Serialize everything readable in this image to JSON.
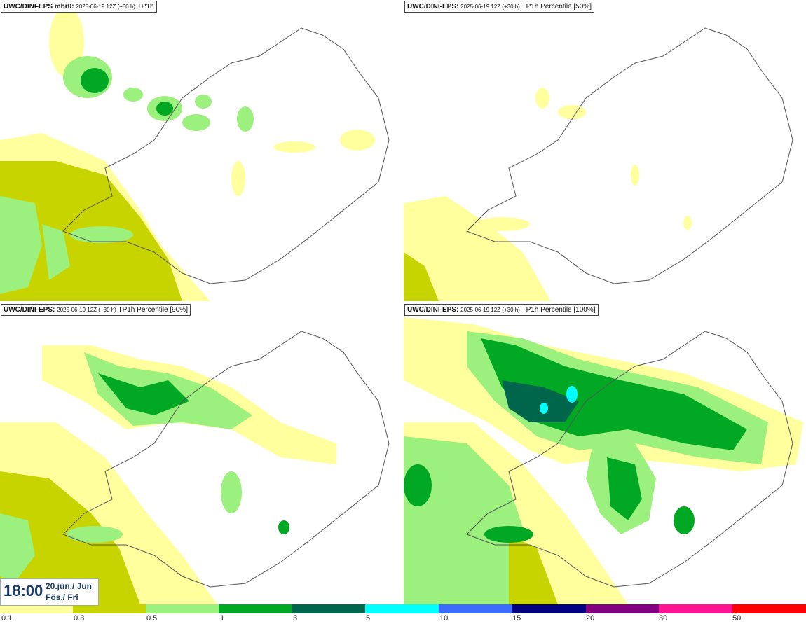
{
  "panels": [
    {
      "source": "UWC/DINI-EPS mbr0:",
      "run": "2025-06-19 12Z (+30 h)",
      "param": "TP1h"
    },
    {
      "source": "UWC/DINI-EPS:",
      "run": "2025-06-19 12Z (+30 h)",
      "param": "TP1h Percentile [50%]"
    },
    {
      "source": "UWC/DINI-EPS:",
      "run": "2025-06-19 12Z (+30 h)",
      "param": "TP1h Percentile [90%]"
    },
    {
      "source": "UWC/DINI-EPS:",
      "run": "2025-06-19 12Z (+30 h)",
      "param": "TP1h Percentile [100%]"
    }
  ],
  "valid_time": {
    "time": "18:00",
    "date": "20.jún./ Jun",
    "day": "Fös./ Fri"
  },
  "legend": {
    "labels": [
      "0.1",
      "0.3",
      "0.5",
      "1",
      "3",
      "5",
      "10",
      "15",
      "20",
      "30",
      "50"
    ],
    "colors": [
      "#ffff9e",
      "#c8d400",
      "#9cf07e",
      "#00a823",
      "#00664b",
      "#00ffff",
      "#3c6cff",
      "#000080",
      "#800080",
      "#ff1493",
      "#ff0000"
    ]
  },
  "map_colors": {
    "light_yellow": "#ffff9e",
    "olive": "#c8d400",
    "light_green": "#9cf07e",
    "green": "#00a823",
    "dark_green": "#00664b",
    "cyan": "#00ffff"
  }
}
